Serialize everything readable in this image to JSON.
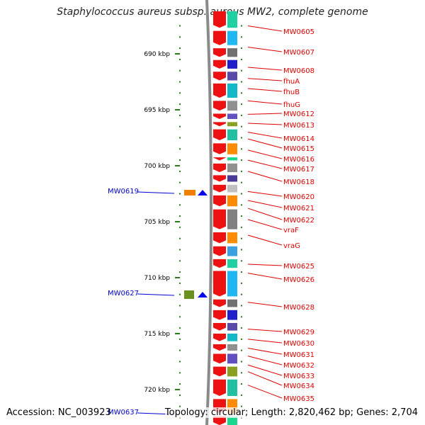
{
  "title": "Staphylococcus aureus subsp. aureus MW2, complete genome",
  "accession_text": "Accession: NC_003923",
  "topology_text": "Topology: circular; Length: 2,820,462 bp; Genes: 2,704",
  "colors": {
    "right_label": "#dd0000",
    "left_label": "#0000cc",
    "tick": "#2a7a1a",
    "backbone": "#8a8a8a"
  },
  "scale": {
    "unit": "kbp",
    "major_ticks": [
      "690 kbp",
      "695 kbp",
      "700 kbp",
      "705 kbp",
      "710 kbp",
      "715 kbp",
      "720 kbp"
    ]
  },
  "left_genes": [
    {
      "name": "MW0619",
      "position_kbp": 702.1
    },
    {
      "name": "MW0627",
      "position_kbp": 710.9
    },
    {
      "name": "MW0637",
      "position_kbp": 722.0
    }
  ],
  "right_genes": [
    {
      "name": "MW0605",
      "position_kbp": 687.5
    },
    {
      "name": "MW0607",
      "position_kbp": 689.4
    },
    {
      "name": "MW0608",
      "position_kbp": 691.2
    },
    {
      "name": "fhuA",
      "position_kbp": 692.2
    },
    {
      "name": "fhuB",
      "position_kbp": 693.1
    },
    {
      "name": "fhuG",
      "position_kbp": 694.2
    },
    {
      "name": "MW0612",
      "position_kbp": 695.4
    },
    {
      "name": "MW0613",
      "position_kbp": 696.2
    },
    {
      "name": "MW0614",
      "position_kbp": 697.0
    },
    {
      "name": "MW0615",
      "position_kbp": 697.6
    },
    {
      "name": "MW0616",
      "position_kbp": 698.6
    },
    {
      "name": "MW0617",
      "position_kbp": 699.5
    },
    {
      "name": "MW0618",
      "position_kbp": 700.5
    },
    {
      "name": "MW0620",
      "position_kbp": 702.3
    },
    {
      "name": "MW0621",
      "position_kbp": 703.1
    },
    {
      "name": "MW0622",
      "position_kbp": 703.8
    },
    {
      "name": "vraF",
      "position_kbp": 704.8
    },
    {
      "name": "vraG",
      "position_kbp": 706.2
    },
    {
      "name": "MW0625",
      "position_kbp": 708.8
    },
    {
      "name": "MW0626",
      "position_kbp": 709.6
    },
    {
      "name": "MW0628",
      "position_kbp": 712.2
    },
    {
      "name": "MW0629",
      "position_kbp": 714.6
    },
    {
      "name": "MW0630",
      "position_kbp": 715.5
    },
    {
      "name": "MW0631",
      "position_kbp": 716.3
    },
    {
      "name": "MW0632",
      "position_kbp": 717.0
    },
    {
      "name": "MW0633",
      "position_kbp": 717.8
    },
    {
      "name": "MW0634",
      "position_kbp": 718.4
    },
    {
      "name": "MW0635",
      "position_kbp": 719.6
    }
  ]
}
